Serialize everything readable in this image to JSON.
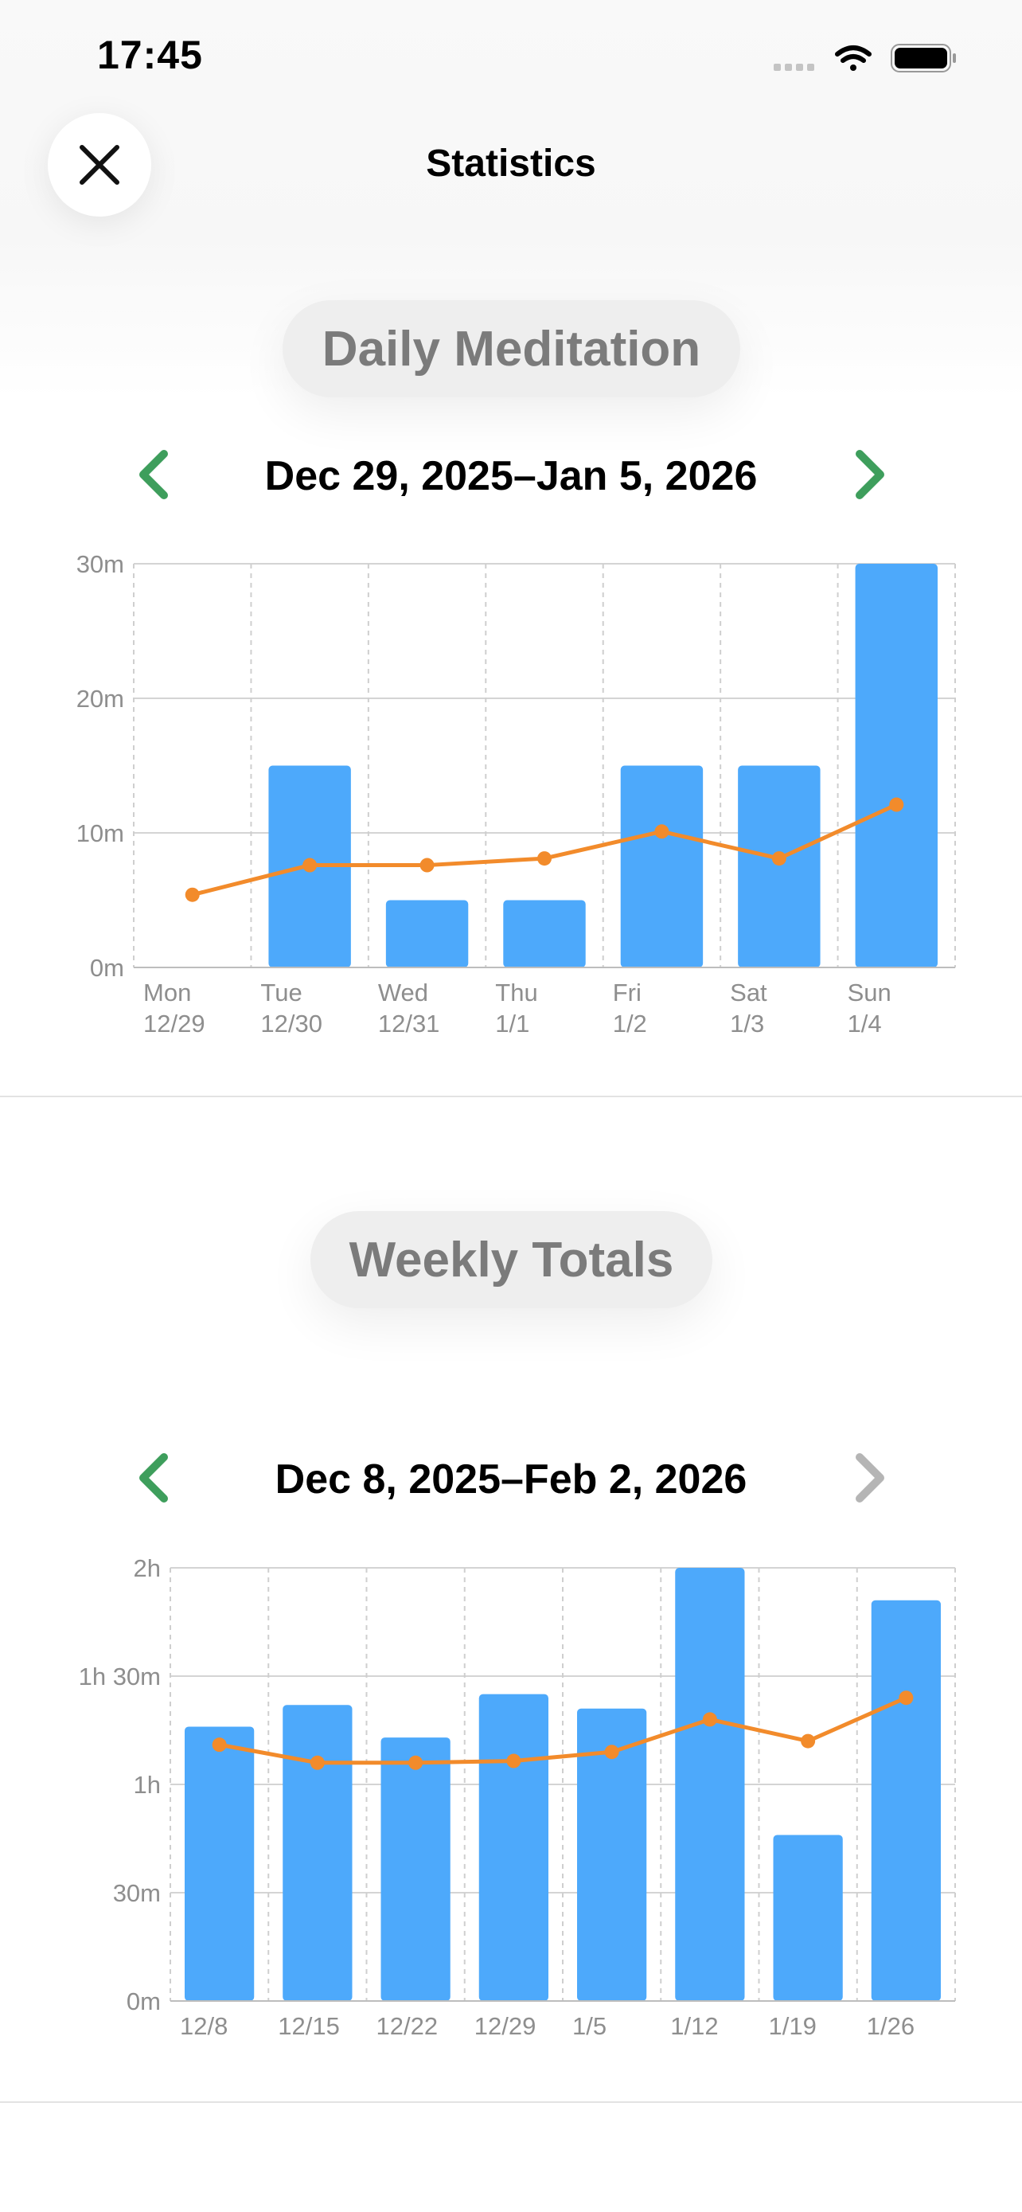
{
  "status_bar": {
    "time": "17:45"
  },
  "header": {
    "title": "Statistics"
  },
  "colors": {
    "bar": "#4DA9FB",
    "line": "#F28B2B",
    "accent_green": "#3E9E5C",
    "disabled": "#B5B5B5"
  },
  "daily": {
    "section_title": "Daily Meditation",
    "range_label": "Dec 29, 2025–Jan 5, 2026",
    "prev_enabled": true,
    "next_enabled": true
  },
  "weekly": {
    "section_title": "Weekly Totals",
    "range_label": "Dec 8, 2025–Feb 2, 2026",
    "prev_enabled": true,
    "next_enabled": false
  },
  "chart_data": [
    {
      "type": "bar",
      "y_unit": "minutes",
      "ylim": [
        0,
        30
      ],
      "y_ticks": [
        0,
        10,
        20,
        30
      ],
      "y_tick_labels": [
        "0m",
        "10m",
        "20m",
        "30m"
      ],
      "categories": [
        "Mon\n12/29",
        "Tue\n12/30",
        "Wed\n12/31",
        "Thu\n1/1",
        "Fri\n1/2",
        "Sat\n1/3",
        "Sun\n1/4"
      ],
      "series": [
        {
          "type": "bar",
          "values": [
            0,
            15,
            5,
            5,
            15,
            15,
            30
          ]
        },
        {
          "type": "line",
          "values": [
            5.4,
            7.6,
            7.6,
            8.1,
            10.1,
            8.1,
            12.1
          ]
        }
      ],
      "grid": true
    },
    {
      "type": "bar",
      "y_unit": "minutes",
      "ylim": [
        0,
        120
      ],
      "y_ticks": [
        0,
        30,
        60,
        90,
        120
      ],
      "y_tick_labels": [
        "0m",
        "30m",
        "1h",
        "1h 30m",
        "2h"
      ],
      "categories": [
        "12/8",
        "12/15",
        "12/22",
        "12/29",
        "1/5",
        "1/12",
        "1/19",
        "1/26"
      ],
      "series": [
        {
          "type": "bar",
          "values": [
            76,
            82,
            73,
            85,
            81,
            120,
            46,
            111
          ]
        },
        {
          "type": "line",
          "values": [
            71,
            66,
            66,
            66.5,
            69,
            78,
            72,
            84
          ]
        }
      ],
      "grid": true
    }
  ]
}
